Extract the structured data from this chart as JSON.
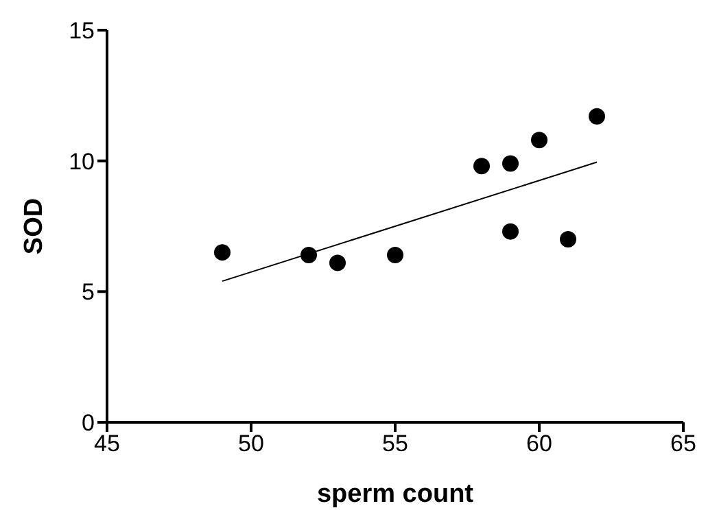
{
  "chart_data": {
    "type": "scatter",
    "xlabel": "sperm count",
    "ylabel": "SOD",
    "xlim": [
      45,
      65
    ],
    "xticks": [
      45,
      50,
      55,
      60,
      65
    ],
    "ylim": [
      0,
      15
    ],
    "yticks": [
      0,
      5,
      10,
      15
    ],
    "grid": false,
    "legend": false,
    "marker": "circle",
    "series": [
      {
        "color": "#000000",
        "x": [
          49,
          52,
          53,
          55,
          58,
          59,
          59,
          60,
          61,
          62
        ],
        "values": [
          6.5,
          6.4,
          6.1,
          6.4,
          9.8,
          9.9,
          7.3,
          10.8,
          7.0,
          11.7
        ]
      },
      {
        "type": "line",
        "color": "#000000",
        "marker": "none",
        "line_style": "solid",
        "x": [
          49,
          62
        ],
        "values": [
          5.4,
          9.95
        ]
      }
    ]
  }
}
